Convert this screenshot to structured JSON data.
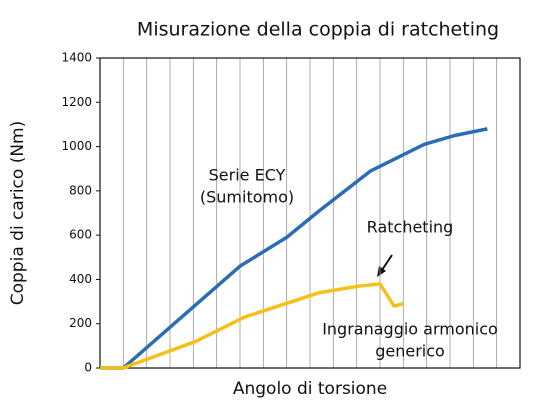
{
  "chart_data": {
    "type": "line",
    "title": "Misurazione della coppia di ratcheting",
    "x_label": "Angolo di torsione",
    "y_label": "Coppia di carico (Nm)",
    "xlim": [
      0,
      18
    ],
    "xticks": [
      0,
      1,
      2,
      3,
      4,
      5,
      6,
      7,
      8,
      9,
      10,
      11,
      12,
      13,
      14,
      15,
      16,
      17,
      18
    ],
    "ylim": [
      0,
      1400
    ],
    "yticks": [
      0,
      200,
      400,
      600,
      800,
      1000,
      1200,
      1400
    ],
    "grid": true,
    "series": [
      {
        "color": "#2a6db5",
        "x": [
          0,
          1,
          6,
          8,
          9.4,
          11.6,
          13.9,
          15.2,
          16.6
        ],
        "values": [
          0,
          0,
          460,
          590,
          710,
          890,
          1010,
          1050,
          1080
        ]
      },
      {
        "color": "#f5c01a",
        "x": [
          0,
          1,
          4.1,
          6.2,
          9.4,
          11.1,
          12,
          12.6,
          13
        ],
        "values": [
          0,
          0,
          120,
          230,
          340,
          370,
          380,
          280,
          290
        ]
      }
    ],
    "annotations": [
      {
        "lines": [
          "Serie ECY",
          "(Sumitomo)"
        ]
      },
      {
        "lines": [
          "Ratcheting"
        ]
      },
      {
        "lines": [
          "Ingranaggio armonico",
          "generico"
        ]
      }
    ]
  }
}
